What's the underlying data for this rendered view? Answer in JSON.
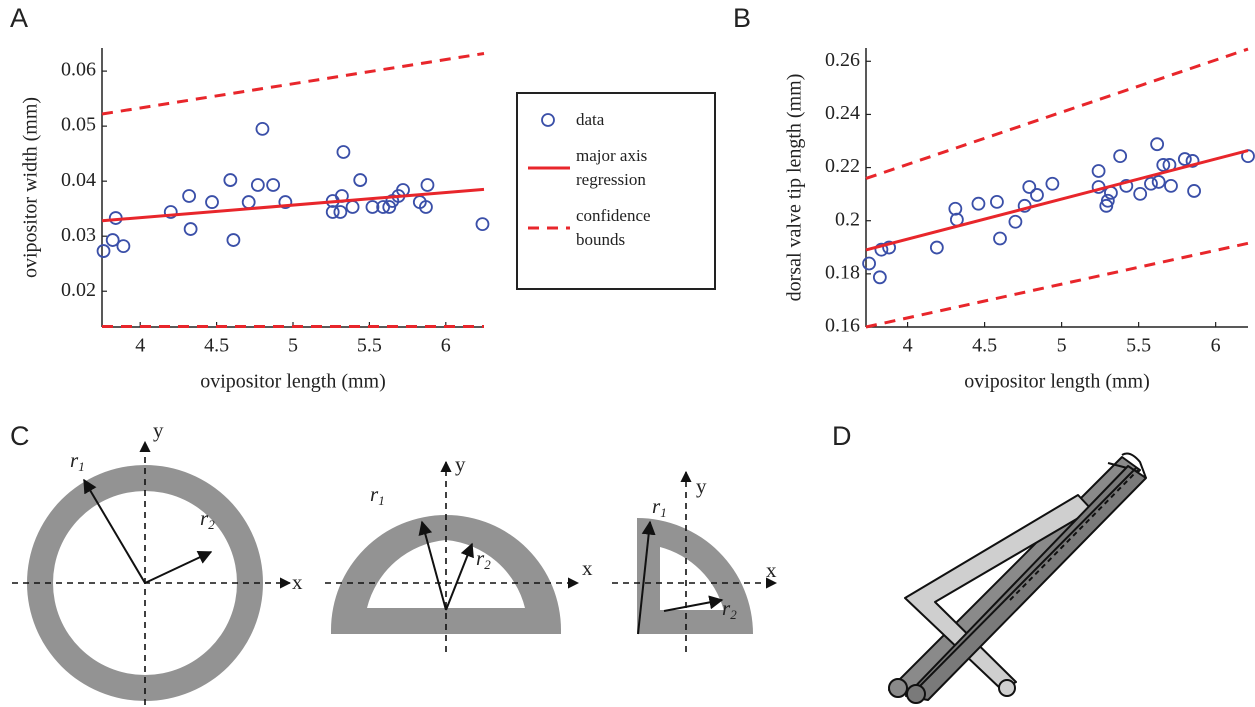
{
  "panels": [
    "A",
    "B",
    "C",
    "D"
  ],
  "diagrams": [
    {
      "x": "x",
      "y": "y",
      "r1": [
        "r",
        "1"
      ],
      "r2": [
        "r",
        "2"
      ]
    },
    {
      "x": "x",
      "y": "y",
      "r1": [
        "r",
        "1"
      ],
      "r2": [
        "r",
        "2"
      ]
    },
    {
      "x": "x",
      "y": "y",
      "r1": [
        "r",
        "1"
      ],
      "r2": [
        "r",
        "2"
      ]
    }
  ],
  "chart_data": [
    {
      "type": "scatter",
      "legend": true,
      "xlabel": "ovipositor length (mm)",
      "ylabel": "ovipositor width (mm)",
      "xlim": [
        3.75,
        6.25
      ],
      "ylim": [
        0.0135,
        0.0642
      ],
      "xticks": [
        4,
        4.5,
        5,
        5.5,
        6
      ],
      "yticks": [
        0.02,
        0.03,
        0.04,
        0.05,
        0.06
      ],
      "series": [
        {
          "name": "data",
          "color": "#3a4fa8",
          "mode": "markers",
          "x": [
            3.76,
            3.82,
            3.84,
            3.89,
            4.2,
            4.32,
            4.33,
            4.47,
            4.59,
            4.61,
            4.71,
            4.77,
            4.8,
            4.87,
            4.95,
            5.26,
            5.26,
            5.31,
            5.32,
            5.33,
            5.39,
            5.44,
            5.52,
            5.59,
            5.63,
            5.65,
            5.69,
            5.72,
            5.83,
            5.87,
            5.88,
            6.24
          ],
          "values": [
            0.0273,
            0.0293,
            0.0333,
            0.0282,
            0.0344,
            0.0373,
            0.0313,
            0.0362,
            0.0402,
            0.0293,
            0.0362,
            0.0393,
            0.0495,
            0.0393,
            0.0362,
            0.0364,
            0.0344,
            0.0344,
            0.0373,
            0.0453,
            0.0353,
            0.0402,
            0.0353,
            0.0353,
            0.0353,
            0.0364,
            0.0373,
            0.0384,
            0.0362,
            0.0353,
            0.0393,
            0.0322
          ]
        },
        {
          "name": "major axis regression",
          "color": "#e8262b",
          "mode": "line",
          "x": [
            3.75,
            6.25
          ],
          "values": [
            0.0328,
            0.0385
          ]
        },
        {
          "name": "confidence bounds",
          "color": "#e8262b",
          "mode": "line",
          "dash": true,
          "x": [
            3.75,
            6.25
          ],
          "values": [
            0.0522,
            0.0632
          ]
        },
        {
          "color": "#e8262b",
          "mode": "line",
          "dash": true,
          "x": [
            3.75,
            6.25
          ],
          "values": [
            0.0136,
            0.0136
          ]
        }
      ]
    },
    {
      "type": "scatter",
      "xlabel": "ovipositor length (mm)",
      "ylabel": "dorsal valve tip length (mm)",
      "xlim": [
        3.73,
        6.21
      ],
      "ylim": [
        0.16,
        0.265
      ],
      "xticks": [
        4,
        4.5,
        5,
        5.5,
        6
      ],
      "yticks": [
        0.16,
        0.18,
        0.2,
        0.22,
        0.24,
        0.26
      ],
      "series": [
        {
          "color": "#3a4fa8",
          "mode": "markers",
          "x": [
            3.75,
            3.82,
            3.83,
            3.88,
            4.19,
            4.31,
            4.32,
            4.46,
            4.58,
            4.6,
            4.7,
            4.76,
            4.79,
            4.84,
            4.94,
            5.24,
            5.24,
            5.29,
            5.3,
            5.32,
            5.38,
            5.42,
            5.51,
            5.58,
            5.62,
            5.63,
            5.66,
            5.7,
            5.71,
            5.8,
            5.85,
            5.86,
            6.21
          ],
          "values": [
            0.1839,
            0.1787,
            0.1891,
            0.1899,
            0.1899,
            0.2045,
            0.2004,
            0.2064,
            0.2071,
            0.1933,
            0.1996,
            0.2056,
            0.2127,
            0.2097,
            0.2139,
            0.2187,
            0.2127,
            0.2056,
            0.2075,
            0.2105,
            0.2243,
            0.2131,
            0.2101,
            0.2139,
            0.2288,
            0.2146,
            0.221,
            0.221,
            0.2131,
            0.2232,
            0.2225,
            0.2112,
            0.2243
          ]
        },
        {
          "color": "#e8262b",
          "mode": "line",
          "x": [
            3.73,
            6.21
          ],
          "values": [
            0.189,
            0.2264
          ]
        },
        {
          "color": "#e8262b",
          "mode": "line",
          "dash": true,
          "x": [
            3.73,
            6.21
          ],
          "values": [
            0.2159,
            0.2646
          ]
        },
        {
          "color": "#e8262b",
          "mode": "line",
          "dash": true,
          "x": [
            3.73,
            6.21
          ],
          "values": [
            0.16,
            0.1915
          ]
        }
      ]
    }
  ]
}
